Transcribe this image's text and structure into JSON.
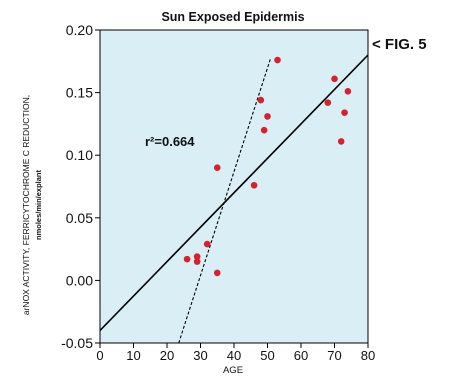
{
  "figure_label": "< FIG. 5",
  "annotation": "r²=0.664",
  "colors": {
    "plot_background": "#d9eef5",
    "points": "#d6212f",
    "fit_line": "#000000"
  },
  "chart_data": {
    "type": "scatter",
    "title": "Sun Exposed Epidermis",
    "xlabel": "AGE",
    "ylabel_line1": "arNOX ACTIVITY, FERRICYTOCHROME C REDUCTION,",
    "ylabel_line2": "nmoles/min/explant",
    "xlim": [
      0,
      80
    ],
    "ylim": [
      -0.05,
      0.2
    ],
    "x_ticks": [
      0,
      10,
      20,
      30,
      40,
      50,
      60,
      70,
      80
    ],
    "y_ticks": [
      -0.05,
      0.0,
      0.05,
      0.1,
      0.15,
      0.2
    ],
    "y_tick_labels": [
      "-0.05",
      "0.00",
      "0.05",
      "0.10",
      "0.15",
      "0.20"
    ],
    "grid": false,
    "points": [
      {
        "x": 26,
        "y": 0.017
      },
      {
        "x": 29,
        "y": 0.019
      },
      {
        "x": 29,
        "y": 0.015
      },
      {
        "x": 32,
        "y": 0.029
      },
      {
        "x": 35,
        "y": 0.006
      },
      {
        "x": 35,
        "y": 0.09
      },
      {
        "x": 46,
        "y": 0.076
      },
      {
        "x": 48,
        "y": 0.144
      },
      {
        "x": 49,
        "y": 0.12
      },
      {
        "x": 50,
        "y": 0.131
      },
      {
        "x": 53,
        "y": 0.176
      },
      {
        "x": 68,
        "y": 0.142
      },
      {
        "x": 70,
        "y": 0.161
      },
      {
        "x": 72,
        "y": 0.111
      },
      {
        "x": 73,
        "y": 0.134
      },
      {
        "x": 74,
        "y": 0.151
      }
    ],
    "regression_line": {
      "x": [
        0,
        80
      ],
      "y": [
        -0.04,
        0.18
      ],
      "style": "solid"
    },
    "dashed_line": {
      "x": [
        23.5,
        51
      ],
      "y": [
        -0.05,
        0.178
      ],
      "style": "dashed"
    }
  }
}
